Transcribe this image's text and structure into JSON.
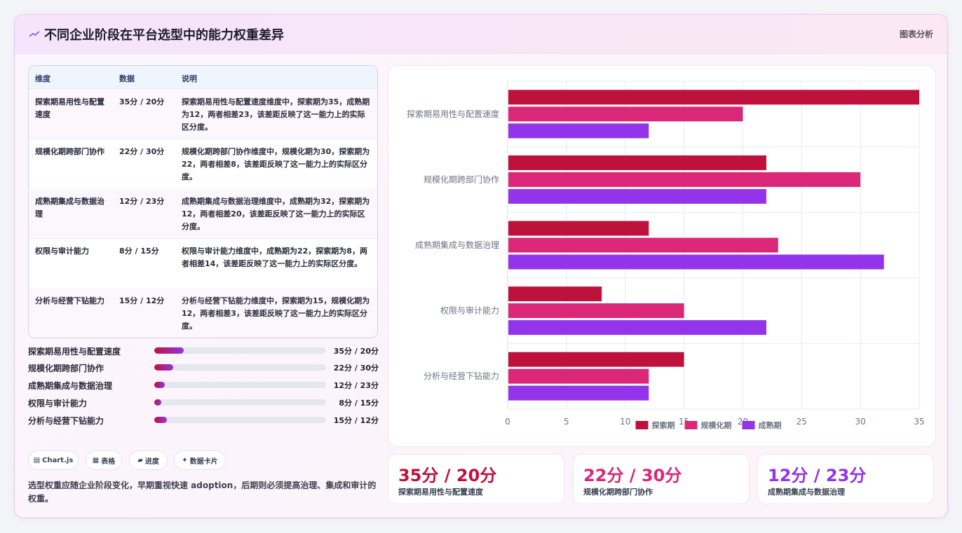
{
  "header": {
    "title": "不同企业阶段在平台选型中的能力权重差异",
    "tag": "图表分析"
  },
  "table": {
    "headers": [
      "维度",
      "数据",
      "说明"
    ],
    "rows": [
      {
        "dim": "探索期易用性与配置速度",
        "value": "35分 / 20分",
        "desc": "探索期易用性与配置速度维度中，探索期为35，成熟期为12，两者相差23，该差距反映了这一能力上的实际区分度。"
      },
      {
        "dim": "规模化期跨部门协作",
        "value": "22分 / 30分",
        "desc": "规模化期跨部门协作维度中，规模化期为30，探索期为22，两者相差8，该差距反映了这一能力上的实际区分度。"
      },
      {
        "dim": "成熟期集成与数据治理",
        "value": "12分 / 23分",
        "desc": "成熟期集成与数据治理维度中，成熟期为32，探索期为12，两者相差20，该差距反映了这一能力上的实际区分度。"
      },
      {
        "dim": "权限与审计能力",
        "value": "8分 / 15分",
        "desc": "权限与审计能力维度中，成熟期为22，探索期为8，两者相差14，该差距反映了这一能力上的实际区分度。"
      },
      {
        "dim": "分析与经营下钻能力",
        "value": "15分 / 12分",
        "desc": "分析与经营下钻能力维度中，探索期为15，规模化期为12，两者相差3，该差距反映了这一能力上的实际区分度。"
      }
    ]
  },
  "progress": [
    {
      "label": "探索期易用性与配置速度",
      "value": "35分 / 20分",
      "fill": 0.17
    },
    {
      "label": "规模化期跨部门协作",
      "value": "22分 / 30分",
      "fill": 0.11
    },
    {
      "label": "成熟期集成与数据治理",
      "value": "12分 / 23分",
      "fill": 0.06
    },
    {
      "label": "权限与审计能力",
      "value": "8分 / 15分",
      "fill": 0.04
    },
    {
      "label": "分析与经营下钻能力",
      "value": "15分 / 12分",
      "fill": 0.075
    }
  ],
  "chips": [
    {
      "icon": "chart-icon",
      "glyph": "▤",
      "label": "Chart.js"
    },
    {
      "icon": "table-icon",
      "glyph": "▦",
      "label": "表格"
    },
    {
      "icon": "progress-icon",
      "glyph": "▰",
      "label": "进度"
    },
    {
      "icon": "sparkle-icon",
      "glyph": "✦",
      "label": "数据卡片"
    }
  ],
  "note": "选型权重应随企业阶段变化，早期重视快速 adoption，后期则必须提高治理、集成和审计的权重。",
  "stats": [
    {
      "value": "35分 / 20分",
      "label": "探索期易用性与配置速度",
      "color": "#be123c"
    },
    {
      "value": "22分 / 30分",
      "label": "规模化期跨部门协作",
      "color": "#db2777"
    },
    {
      "value": "12分 / 23分",
      "label": "成熟期集成与数据治理",
      "color": "#9333ea"
    }
  ],
  "chart_data": {
    "type": "bar",
    "orientation": "horizontal",
    "categories": [
      "探索期易用性与配置速度",
      "规模化期跨部门协作",
      "成熟期集成与数据治理",
      "权限与审计能力",
      "分析与经营下钻能力"
    ],
    "series": [
      {
        "name": "探索期",
        "color": "#be123c",
        "values": [
          35,
          22,
          12,
          8,
          15
        ]
      },
      {
        "name": "规模化期",
        "color": "#db2777",
        "values": [
          20,
          30,
          23,
          15,
          12
        ]
      },
      {
        "name": "成熟期",
        "color": "#9333ea",
        "values": [
          12,
          22,
          32,
          22,
          12
        ]
      }
    ],
    "xlim": [
      0,
      35
    ],
    "xticks": [
      0,
      5,
      10,
      15,
      20,
      25,
      30,
      35
    ],
    "grid": true,
    "legend": "bottom"
  }
}
